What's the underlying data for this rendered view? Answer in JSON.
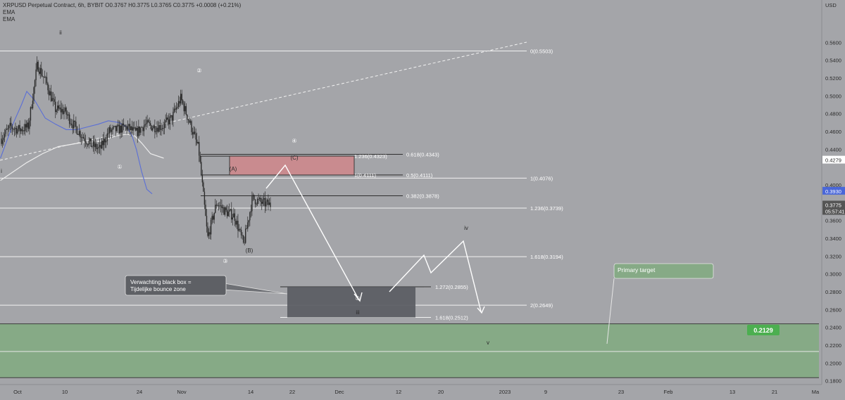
{
  "header": {
    "symbol_line": "XRPUSD Perpetual Contract, 6h, BYBIT  O0.3767  H0.3775  L0.3765  C0.3775  +0.0008 (+0.21%)",
    "ema1": "EMA",
    "ema2": "EMA"
  },
  "colors": {
    "background": "#a4a5a9",
    "candle": "#2b2b2b",
    "ema_fast": "#5b6fd6",
    "ema_slow": "#ececec",
    "fib_line": "#f2f2f2",
    "red_box": "#c98b8f",
    "black_box": "#5a5c63",
    "green_zone": "#86aa86",
    "price_badge": "#555555",
    "blue_badge": "#4a67d8"
  },
  "chart_data": {
    "type": "candlestick",
    "symbol": "XRPUSD Perpetual Contract",
    "timeframe": "6h",
    "exchange": "BYBIT",
    "ohlc_last": {
      "open": 0.3767,
      "high": 0.3775,
      "low": 0.3765,
      "close": 0.3775,
      "change": "+0.0008 (+0.21%)"
    },
    "y_axis": {
      "unit": "USD",
      "range": [
        0.17,
        0.59
      ],
      "ticks": [
        "0.5600",
        "0.5400",
        "0.5200",
        "0.5000",
        "0.4800",
        "0.4600",
        "0.4400",
        "0.4000",
        "0.3800",
        "0.3600",
        "0.3400",
        "0.3200",
        "0.3000",
        "0.2800",
        "0.2600",
        "0.2400",
        "0.2200",
        "0.2000",
        "0.1800"
      ]
    },
    "x_axis": {
      "ticks": [
        "Oct",
        "10",
        "24",
        "Nov",
        "14",
        "22",
        "Dec",
        "12",
        "20",
        "2023",
        "9",
        "23",
        "Feb",
        "13",
        "21",
        "Ma"
      ]
    },
    "price_path": [
      [
        0.445,
        0.452
      ],
      [
        0.475,
        0.465
      ],
      [
        0.47,
        0.462
      ],
      [
        0.495,
        0.465
      ],
      [
        0.515,
        0.535
      ],
      [
        0.525,
        0.515
      ],
      [
        0.505,
        0.485
      ],
      [
        0.49,
        0.483
      ],
      [
        0.478,
        0.468
      ],
      [
        0.47,
        0.455
      ],
      [
        0.455,
        0.445
      ],
      [
        0.445,
        0.44
      ],
      [
        0.455,
        0.46
      ],
      [
        0.465,
        0.462
      ],
      [
        0.472,
        0.465
      ],
      [
        0.465,
        0.458
      ],
      [
        0.462,
        0.468
      ],
      [
        0.47,
        0.465
      ],
      [
        0.463,
        0.466
      ],
      [
        0.465,
        0.475
      ],
      [
        0.498,
        0.497
      ],
      [
        0.485,
        0.47
      ],
      [
        0.462,
        0.44
      ],
      [
        0.405,
        0.34
      ],
      [
        0.325,
        0.38
      ],
      [
        0.395,
        0.37
      ],
      [
        0.362,
        0.365
      ],
      [
        0.34,
        0.333
      ],
      [
        0.365,
        0.385
      ],
      [
        0.39,
        0.38
      ],
      [
        0.382,
        0.3775
      ]
    ],
    "ema_fast": [
      [
        0.45,
        0.43
      ],
      [
        0.475,
        0.47
      ],
      [
        0.49,
        0.49
      ],
      [
        0.5,
        0.505
      ],
      [
        0.515,
        0.495
      ],
      [
        0.535,
        0.475
      ],
      [
        0.555,
        0.468
      ],
      [
        0.575,
        0.462
      ],
      [
        0.595,
        0.462
      ],
      [
        0.615,
        0.465
      ],
      [
        0.635,
        0.468
      ],
      [
        0.655,
        0.472
      ],
      [
        0.675,
        0.47
      ],
      [
        0.69,
        0.465
      ],
      [
        0.7,
        0.455
      ],
      [
        0.708,
        0.44
      ],
      [
        0.718,
        0.415
      ],
      [
        0.728,
        0.395
      ],
      [
        0.738,
        0.39
      ]
    ],
    "ema_slow": [
      [
        0.45,
        0.405
      ],
      [
        0.475,
        0.415
      ],
      [
        0.5,
        0.425
      ],
      [
        0.53,
        0.435
      ],
      [
        0.56,
        0.443
      ],
      [
        0.6,
        0.447
      ],
      [
        0.64,
        0.449
      ],
      [
        0.67,
        0.455
      ],
      [
        0.69,
        0.457
      ],
      [
        0.705,
        0.455
      ],
      [
        0.718,
        0.447
      ],
      [
        0.735,
        0.435
      ],
      [
        0.76,
        0.43
      ]
    ],
    "fib_levels": [
      {
        "label": "0(0.5503)",
        "price": 0.5503
      },
      {
        "label": "0.618(0.4343)",
        "price": 0.4343
      },
      {
        "label": "1.236(0.4323)",
        "price": 0.4323
      },
      {
        "label": "0.5(0.4111)",
        "price": 0.4111
      },
      {
        "label": "1(0.4111)",
        "price": 0.4111
      },
      {
        "label": "1(0.4076)",
        "price": 0.4076
      },
      {
        "label": "0.382(0.3878)",
        "price": 0.3878
      },
      {
        "label": "1.236(0.3739)",
        "price": 0.3739
      },
      {
        "label": "1.618(0.3194)",
        "price": 0.3194
      },
      {
        "label": "1.272(0.2855)",
        "price": 0.2855
      },
      {
        "label": "2(0.2649)",
        "price": 0.2649
      },
      {
        "label": "1.618(0.2512)",
        "price": 0.2512
      }
    ],
    "wave_labels": [
      "ii",
      "i",
      "①",
      "②",
      "③",
      "④",
      "⑤",
      "(A)",
      "(B)",
      "(C)",
      "iii",
      "iv",
      "v"
    ],
    "annotations": {
      "callout": [
        "Verwachting black box =",
        "Tijdelijke bounce zone"
      ],
      "primary_target": "Primary target",
      "target_value": "0.2129"
    },
    "price_badges": {
      "current": "0.3775",
      "countdown": "05:57:41",
      "ema_value": "0.3930",
      "high_value": "0.4279"
    }
  }
}
